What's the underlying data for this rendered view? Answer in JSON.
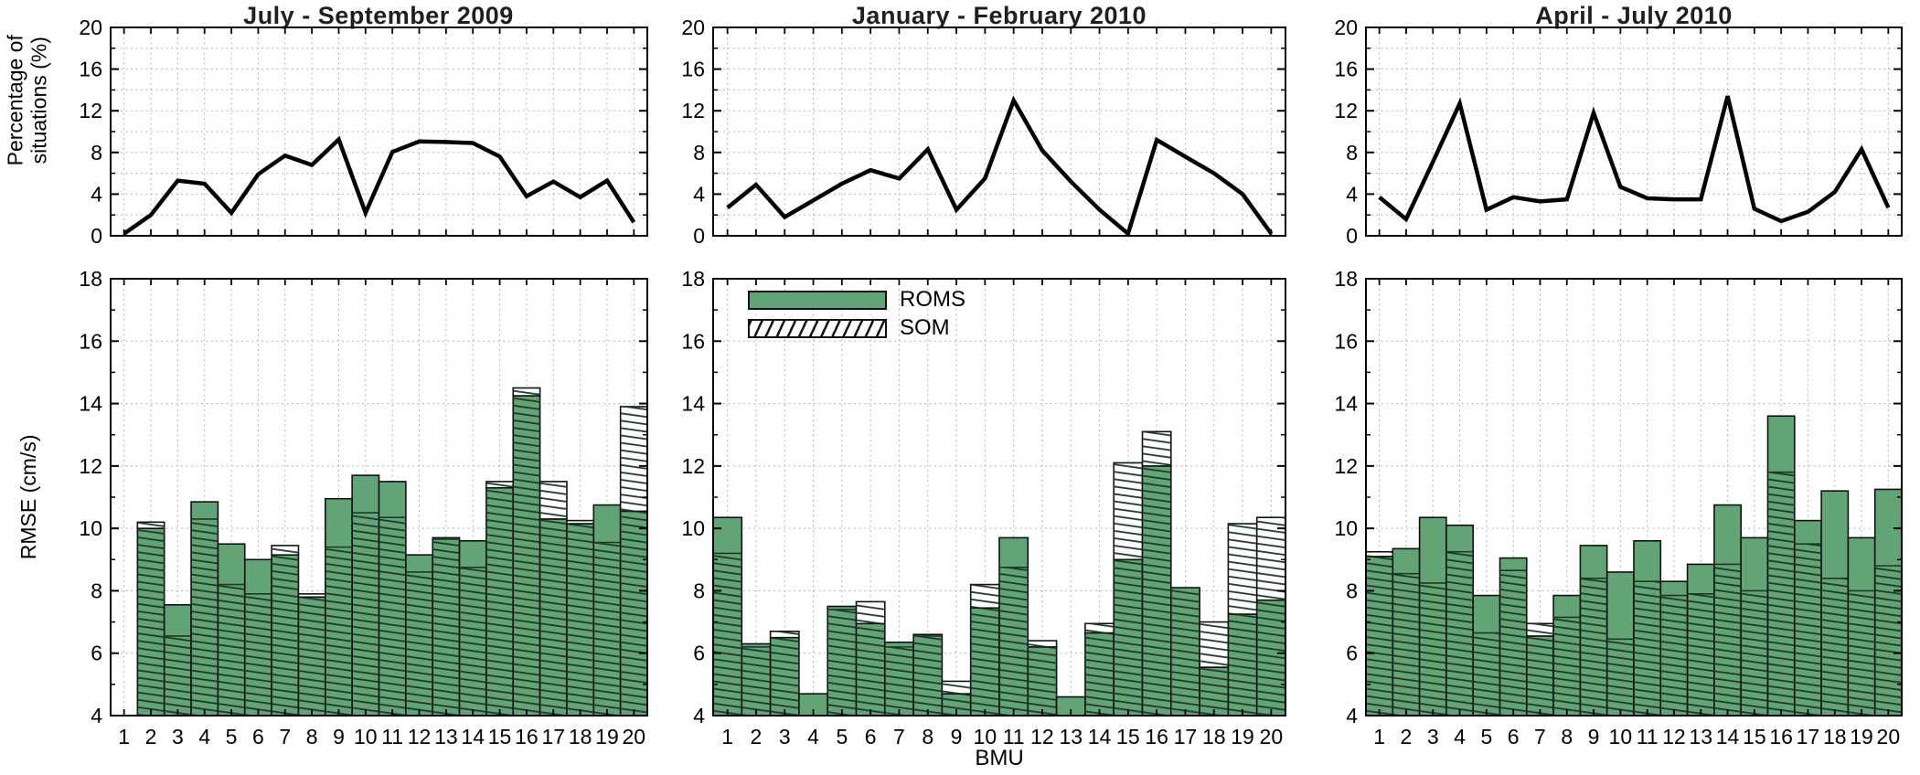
{
  "labels": {
    "top_y": "Percentage of situations (%)",
    "bottom_y": "RMSE (cm/s)",
    "x": "BMU"
  },
  "legend": {
    "roms": "ROMS",
    "som": "SOM"
  },
  "colors": {
    "roms_green": "#63a477",
    "hatch_line": "#1d3826",
    "bar_edge": "#111111",
    "line_series": "#000000",
    "grid": "#b3b3b3",
    "axis": "#000000",
    "title_text": "#1f1f1f"
  },
  "chart_data": [
    {
      "panel": "left",
      "title": "July - September 2009",
      "line_chart": {
        "type": "line",
        "ylabel": "Percentage of situations (%)",
        "ylim": [
          0,
          20
        ],
        "yticks": [
          0,
          4,
          8,
          12,
          16,
          20
        ],
        "grid_step": 2,
        "x": [
          1,
          2,
          3,
          4,
          5,
          6,
          7,
          8,
          9,
          10,
          11,
          12,
          13,
          14,
          15,
          16,
          17,
          18,
          19,
          20
        ],
        "values": [
          0.2,
          2.0,
          5.3,
          5.0,
          2.2,
          5.9,
          7.7,
          6.8,
          9.25,
          2.2,
          8.05,
          9.05,
          9.0,
          8.9,
          7.6,
          3.8,
          5.2,
          3.7,
          5.3,
          1.3
        ]
      },
      "bar_chart": {
        "type": "bar",
        "ylabel": "RMSE (cm/s)",
        "xlabel": "BMU",
        "ylim": [
          4,
          18
        ],
        "yticks": [
          4,
          6,
          8,
          10,
          12,
          14,
          16,
          18
        ],
        "grid_step": 2,
        "categories": [
          1,
          2,
          3,
          4,
          5,
          6,
          7,
          8,
          9,
          10,
          11,
          12,
          13,
          14,
          15,
          16,
          17,
          18,
          19,
          20
        ],
        "series": [
          {
            "name": "ROMS",
            "values": [
              null,
              10.0,
              7.55,
              10.85,
              9.5,
              9.0,
              9.15,
              7.8,
              10.95,
              11.7,
              11.5,
              9.15,
              9.7,
              9.6,
              11.3,
              14.25,
              10.3,
              10.15,
              10.75,
              10.55
            ]
          },
          {
            "name": "SOM",
            "values": [
              null,
              10.2,
              6.55,
              10.3,
              8.2,
              7.9,
              9.45,
              7.9,
              9.4,
              10.5,
              10.35,
              8.6,
              9.65,
              8.75,
              11.5,
              14.5,
              11.5,
              10.25,
              9.55,
              13.9
            ]
          }
        ]
      }
    },
    {
      "panel": "middle",
      "title": "January - February 2010",
      "line_chart": {
        "type": "line",
        "ylim": [
          0,
          20
        ],
        "yticks": [
          0,
          4,
          8,
          12,
          16,
          20
        ],
        "grid_step": 2,
        "x": [
          1,
          2,
          3,
          4,
          5,
          6,
          7,
          8,
          9,
          10,
          11,
          12,
          13,
          14,
          15,
          16,
          17,
          18,
          19,
          20
        ],
        "values": [
          2.7,
          4.9,
          1.8,
          3.4,
          5.0,
          6.3,
          5.5,
          8.3,
          2.5,
          5.5,
          13.0,
          8.2,
          5.2,
          2.5,
          0.2,
          9.2,
          7.6,
          6.0,
          4.0,
          0.2
        ]
      },
      "bar_chart": {
        "type": "bar",
        "xlabel": "BMU",
        "ylim": [
          4,
          18
        ],
        "yticks": [
          4,
          6,
          8,
          10,
          12,
          14,
          16,
          18
        ],
        "grid_step": 2,
        "legend_position": "top-left",
        "categories": [
          1,
          2,
          3,
          4,
          5,
          6,
          7,
          8,
          9,
          10,
          11,
          12,
          13,
          14,
          15,
          16,
          17,
          18,
          19,
          20
        ],
        "series": [
          {
            "name": "ROMS",
            "values": [
              10.35,
              6.3,
              6.5,
              4.7,
              7.5,
              6.95,
              6.35,
              6.6,
              4.7,
              7.45,
              9.7,
              6.2,
              4.6,
              6.65,
              9.0,
              12.0,
              8.1,
              5.55,
              7.25,
              7.7
            ]
          },
          {
            "name": "SOM",
            "values": [
              9.2,
              6.2,
              6.7,
              4.0,
              7.4,
              7.65,
              6.2,
              6.55,
              5.1,
              8.2,
              8.75,
              6.4,
              4.0,
              6.95,
              12.1,
              13.1,
              8.1,
              7.0,
              10.15,
              10.35
            ]
          }
        ]
      }
    },
    {
      "panel": "right",
      "title": "April - July 2010",
      "line_chart": {
        "type": "line",
        "ylim": [
          0,
          20
        ],
        "yticks": [
          0,
          4,
          8,
          12,
          16,
          20
        ],
        "grid_step": 2,
        "x": [
          1,
          2,
          3,
          4,
          5,
          6,
          7,
          8,
          9,
          10,
          11,
          12,
          13,
          14,
          15,
          16,
          17,
          18,
          19,
          20
        ],
        "values": [
          3.7,
          1.6,
          7.1,
          12.7,
          2.5,
          3.7,
          3.3,
          3.5,
          11.8,
          4.7,
          3.6,
          3.5,
          3.5,
          13.4,
          2.6,
          1.4,
          2.3,
          4.2,
          8.3,
          2.7
        ]
      },
      "bar_chart": {
        "type": "bar",
        "xlabel": "BMU",
        "ylim": [
          4,
          18
        ],
        "yticks": [
          4,
          6,
          8,
          10,
          12,
          14,
          16,
          18
        ],
        "grid_step": 2,
        "categories": [
          1,
          2,
          3,
          4,
          5,
          6,
          7,
          8,
          9,
          10,
          11,
          12,
          13,
          14,
          15,
          16,
          17,
          18,
          19,
          20
        ],
        "series": [
          {
            "name": "ROMS",
            "values": [
              9.1,
              9.35,
              10.35,
              10.1,
              7.85,
              9.05,
              6.55,
              7.85,
              9.45,
              8.6,
              9.6,
              8.3,
              8.85,
              10.75,
              9.7,
              13.6,
              10.25,
              11.2,
              9.7,
              11.25
            ]
          },
          {
            "name": "SOM",
            "values": [
              9.25,
              8.55,
              8.25,
              9.25,
              6.65,
              8.65,
              6.95,
              7.15,
              8.4,
              6.45,
              8.3,
              7.85,
              7.9,
              8.85,
              8.0,
              11.8,
              9.5,
              8.4,
              8.0,
              8.8
            ]
          }
        ]
      }
    }
  ]
}
